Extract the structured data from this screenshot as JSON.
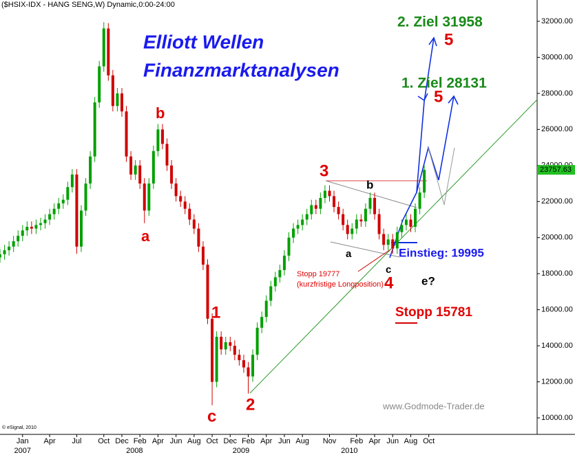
{
  "chart_data": {
    "type": "candlestick",
    "title": "($HSIX-IDX - HANG SENG,W) Dynamic,0:00-24:00",
    "up_color": "#00a000",
    "down_color": "#d00000",
    "x": [
      -2.5,
      -2,
      -1.5,
      -1,
      -0.5,
      0,
      0.5,
      1,
      1.5,
      2,
      2.5,
      3,
      3.5,
      4,
      4.5,
      5,
      5.5,
      6,
      6.5,
      7,
      7.5,
      8,
      8.5,
      9,
      9.5,
      10,
      10.5,
      11,
      11.5,
      12,
      12.5,
      13,
      13.5,
      14,
      14.5,
      15,
      15.5,
      16,
      16.5,
      17,
      17.5,
      18,
      18.5,
      19,
      19.5,
      20,
      20.5,
      21,
      21.5,
      22,
      22.5,
      23,
      23.5,
      24,
      24.5,
      25,
      25.5,
      26,
      26.5,
      27,
      27.5,
      28,
      28.5,
      29,
      29.5,
      30,
      30.5,
      31,
      31.5,
      32,
      32.5,
      33,
      33.5,
      34,
      34.5,
      35,
      35.5,
      36,
      36.5,
      37,
      37.5,
      38,
      38.5,
      39,
      39.5,
      40,
      40.5,
      41,
      41.5,
      42,
      42.5,
      43,
      43.5,
      44,
      44.5
    ],
    "open": [
      18900,
      19075,
      19300,
      19500,
      19800,
      20100,
      20400,
      20600,
      20500,
      20700,
      20800,
      21000,
      21300,
      21600,
      21900,
      22100,
      22800,
      23500,
      19500,
      21500,
      23000,
      24500,
      27500,
      29500,
      31600,
      29000,
      27300,
      28000,
      27000,
      24500,
      23500,
      24000,
      23000,
      21500,
      23000,
      24800,
      26000,
      25200,
      24000,
      23000,
      22300,
      22000,
      21600,
      21000,
      20500,
      19500,
      18500,
      15500,
      12000,
      14500,
      13800,
      14200,
      14000,
      13500,
      13200,
      12800,
      12300,
      13500,
      15000,
      15600,
      16500,
      17300,
      17800,
      18200,
      19000,
      20000,
      20500,
      20700,
      21000,
      21300,
      21800,
      21600,
      22200,
      22600,
      22300,
      21700,
      21300,
      20700,
      20200,
      20500,
      21000,
      20900,
      21600,
      22200,
      21300,
      20200,
      19600,
      19900,
      19400,
      20300,
      20700,
      21000,
      20600,
      21600,
      22500
    ],
    "high": [
      19375,
      19600,
      19800,
      20100,
      20400,
      20700,
      20900,
      20900,
      21000,
      21100,
      21300,
      21600,
      21900,
      22200,
      22400,
      23100,
      23800,
      23800,
      21800,
      23300,
      24800,
      27800,
      29800,
      31950,
      31900,
      29300,
      28300,
      28300,
      27300,
      24800,
      24300,
      24300,
      23300,
      23300,
      25100,
      26300,
      26300,
      25500,
      24300,
      23300,
      22600,
      22300,
      21900,
      21300,
      20800,
      19800,
      18800,
      15800,
      14800,
      14800,
      14500,
      14500,
      14300,
      13800,
      13500,
      13100,
      13800,
      15300,
      15900,
      16800,
      17600,
      18100,
      18500,
      19300,
      20300,
      20800,
      21000,
      21300,
      21600,
      22100,
      22100,
      22500,
      22900,
      22900,
      22600,
      22000,
      21600,
      21000,
      20800,
      21300,
      21300,
      21900,
      22500,
      22500,
      21600,
      20500,
      20200,
      20200,
      20600,
      21000,
      21300,
      21300,
      21900,
      22800,
      24000
    ],
    "low": [
      18600,
      18775,
      19000,
      19200,
      19500,
      19800,
      20100,
      20200,
      20200,
      20400,
      20500,
      20700,
      21000,
      21300,
      21600,
      21800,
      22500,
      19100,
      19200,
      21200,
      22700,
      24200,
      27200,
      29200,
      28700,
      27000,
      27000,
      26700,
      24200,
      23200,
      23200,
      22700,
      20800,
      21200,
      22700,
      24500,
      24900,
      23700,
      22700,
      22000,
      21700,
      21300,
      20700,
      20200,
      19200,
      18200,
      15200,
      10700,
      11700,
      13500,
      13500,
      13700,
      13200,
      12900,
      12500,
      11350,
      12000,
      13200,
      14700,
      15300,
      16200,
      17000,
      17500,
      17900,
      18700,
      19700,
      20200,
      20400,
      20700,
      21000,
      21300,
      21300,
      21900,
      22000,
      21400,
      21000,
      20400,
      19900,
      19900,
      20200,
      20600,
      20600,
      21300,
      21000,
      19900,
      19300,
      19300,
      19100,
      19100,
      20000,
      20400,
      20300,
      20300,
      21300,
      22200
    ],
    "close": [
      19075,
      19300,
      19500,
      19800,
      20100,
      20400,
      20600,
      20500,
      20700,
      20800,
      21000,
      21300,
      21600,
      21900,
      22100,
      22800,
      23500,
      19500,
      21500,
      23000,
      24500,
      27500,
      29500,
      31600,
      29000,
      27300,
      28000,
      27000,
      24500,
      23500,
      24000,
      23000,
      21500,
      23000,
      24800,
      26000,
      25200,
      24000,
      23000,
      22300,
      22000,
      21600,
      21000,
      20500,
      19500,
      18500,
      15500,
      12000,
      14500,
      13800,
      14200,
      14000,
      13500,
      13200,
      12800,
      12300,
      13500,
      15000,
      15600,
      16500,
      17300,
      17800,
      18200,
      19000,
      20000,
      20500,
      20700,
      21000,
      21300,
      21800,
      21600,
      22200,
      22600,
      22300,
      21700,
      21300,
      20700,
      20200,
      20500,
      21000,
      20900,
      21600,
      22200,
      21300,
      20200,
      19600,
      19900,
      19400,
      20300,
      20700,
      21000,
      20600,
      21600,
      22500,
      23757.63
    ],
    "xlim": [
      -2.5,
      57
    ],
    "ylim": [
      9085,
      33180
    ],
    "yticks": [
      {
        "value": 10000,
        "label": "10000.00"
      },
      {
        "value": 12000,
        "label": "12000.00"
      },
      {
        "value": 14000,
        "label": "14000.00"
      },
      {
        "value": 16000,
        "label": "16000.00"
      },
      {
        "value": 18000,
        "label": "18000.00"
      },
      {
        "value": 20000,
        "label": "20000.00"
      },
      {
        "value": 22000,
        "label": "22000.00"
      },
      {
        "value": 24000,
        "label": "24000.00"
      },
      {
        "value": 26000,
        "label": "26000.00"
      },
      {
        "value": 28000,
        "label": "28000.00"
      },
      {
        "value": 30000,
        "label": "30000.00"
      },
      {
        "value": 32000,
        "label": "32000.00"
      }
    ],
    "xticks": [
      {
        "value": 0,
        "label": "Jan"
      },
      {
        "value": 3,
        "label": "Apr"
      },
      {
        "value": 6,
        "label": "Jul"
      },
      {
        "value": 9,
        "label": "Oct"
      },
      {
        "value": 11,
        "label": "Dec"
      },
      {
        "value": 13,
        "label": "Feb"
      },
      {
        "value": 15,
        "label": "Apr"
      },
      {
        "value": 17,
        "label": "Jun"
      },
      {
        "value": 19,
        "label": "Aug"
      },
      {
        "value": 21,
        "label": "Oct"
      },
      {
        "value": 23,
        "label": "Dec"
      },
      {
        "value": 25,
        "label": "Feb"
      },
      {
        "value": 27,
        "label": "Apr"
      },
      {
        "value": 29,
        "label": "Jun"
      },
      {
        "value": 31,
        "label": "Aug"
      },
      {
        "value": 34,
        "label": "Nov"
      },
      {
        "value": 37,
        "label": "Feb"
      },
      {
        "value": 39,
        "label": "Apr"
      },
      {
        "value": 41,
        "label": "Jun"
      },
      {
        "value": 43,
        "label": "Aug"
      },
      {
        "value": 45,
        "label": "Oct"
      }
    ],
    "year_ticks": [
      {
        "value": 0,
        "label": "2007"
      },
      {
        "value": 12.4,
        "label": "2008"
      },
      {
        "value": 24.2,
        "label": "2009"
      },
      {
        "value": 36.2,
        "label": "2010"
      }
    ],
    "annotations": [
      "Elliott Wellen",
      "Finanzmarktanalysen",
      "2. Ziel 31958",
      "5",
      "1. Ziel 28131",
      "5",
      "3",
      "b",
      "b",
      "a",
      "a",
      "c",
      "1",
      "c",
      "2",
      "4",
      "e?",
      "Einstieg: 19995",
      "Stopp 19777",
      "(kurzfristige Longposition)",
      "Stopp 15781",
      "www.Godmode-Trader.de",
      "© eSignal, 2010"
    ]
  }
}
